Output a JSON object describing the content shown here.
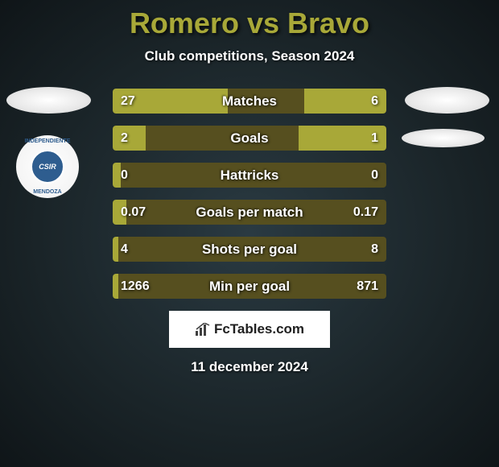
{
  "title": "Romero vs Bravo",
  "subtitle": "Club competitions, Season 2024",
  "date": "11 december 2024",
  "brand": "FcTables.com",
  "team_badge_text": "CSIR",
  "colors": {
    "accent": "#a8a838",
    "bar_bg": "#564f1f",
    "text": "#ffffff",
    "background": "#1a2428",
    "brand_bg": "#ffffff",
    "brand_text": "#202020",
    "badge_bg": "#2e5d8f"
  },
  "stats": [
    {
      "label": "Matches",
      "left_val": "27",
      "right_val": "6",
      "left_pct": 42,
      "right_pct": 30
    },
    {
      "label": "Goals",
      "left_val": "2",
      "right_val": "1",
      "left_pct": 12,
      "right_pct": 32
    },
    {
      "label": "Hattricks",
      "left_val": "0",
      "right_val": "0",
      "left_pct": 3,
      "right_pct": 0
    },
    {
      "label": "Goals per match",
      "left_val": "0.07",
      "right_val": "0.17",
      "left_pct": 5,
      "right_pct": 0
    },
    {
      "label": "Shots per goal",
      "left_val": "4",
      "right_val": "8",
      "left_pct": 2,
      "right_pct": 0
    },
    {
      "label": "Min per goal",
      "left_val": "1266",
      "right_val": "871",
      "left_pct": 2,
      "right_pct": 0
    }
  ]
}
